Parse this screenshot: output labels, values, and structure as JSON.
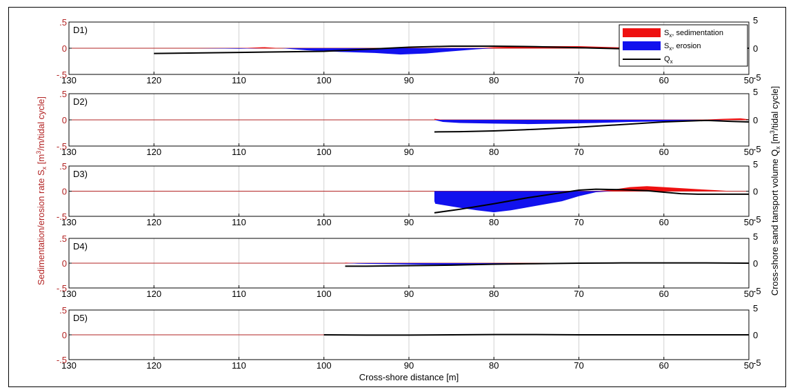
{
  "colors": {
    "sedimentation": "#ee1111",
    "erosion": "#1111ee",
    "qx": "#000000",
    "left_axis": "#b22222",
    "grid": "#d0d0d0"
  },
  "figure": {
    "left_axis_label_main": "Sedimentation/erosion rate S",
    "left_axis_label_sub": "x",
    "left_axis_label_unit_pre": " [m",
    "left_axis_label_unit_sup": "3",
    "left_axis_label_unit_post": "/m/tidal cycle]",
    "right_axis_label_main": "Cross-shore sand tansport volume Q",
    "right_axis_label_sub": "x",
    "right_axis_label_unit_pre": " [m",
    "right_axis_label_unit_sup": "3",
    "right_axis_label_unit_post": "/tidal cycle]",
    "x_axis_label": "Cross-shore distance [m]"
  },
  "legend": {
    "sedimentation_prefix": "S",
    "sedimentation_sub": "x",
    "sedimentation_suffix": ", sedimentation",
    "erosion_prefix": "S",
    "erosion_sub": "x",
    "erosion_suffix": ", erosion",
    "qx_prefix": "Q",
    "qx_sub": "x"
  },
  "chart_data": [
    {
      "type": "area",
      "panel": "D1)",
      "xlim": [
        130,
        50
      ],
      "ylim_left": [
        -0.5,
        0.5
      ],
      "ylim_right": [
        -5,
        5
      ],
      "xticks": [
        130,
        120,
        110,
        100,
        90,
        80,
        70,
        60,
        50
      ],
      "yticks_left": [
        -0.5,
        0,
        0.5
      ],
      "yticks_right": [
        -5,
        0,
        5
      ],
      "grid": "vertical",
      "legend_position": "top-right",
      "sx": {
        "x": [
          120,
          115,
          110,
          107,
          105,
          102,
          98,
          94,
          91,
          88,
          85,
          82,
          80,
          75,
          70,
          66,
          62,
          58,
          54,
          50
        ],
        "y": [
          0,
          0,
          -0.01,
          0.02,
          0,
          -0.04,
          -0.07,
          -0.09,
          -0.12,
          -0.1,
          -0.06,
          -0.02,
          0.02,
          0.04,
          0.04,
          0.02,
          0,
          0,
          0,
          0
        ]
      },
      "qx": {
        "x": [
          120,
          110,
          100,
          95,
          90,
          85,
          80,
          75,
          70,
          65,
          60,
          55,
          50
        ],
        "y": [
          -1.0,
          -0.8,
          -0.6,
          -0.2,
          0.2,
          0.4,
          0.4,
          0.3,
          0.1,
          -0.1,
          0,
          0,
          0
        ]
      }
    },
    {
      "type": "area",
      "panel": "D2)",
      "xlim": [
        130,
        50
      ],
      "ylim_left": [
        -0.5,
        0.5
      ],
      "ylim_right": [
        -5,
        5
      ],
      "xticks": [
        130,
        120,
        110,
        100,
        90,
        80,
        70,
        60,
        50
      ],
      "yticks_left": [
        -0.5,
        0,
        0.5
      ],
      "yticks_right": [
        -5,
        0,
        5
      ],
      "grid": "vertical",
      "sx": {
        "x": [
          87,
          86,
          84,
          80,
          76,
          72,
          68,
          64,
          60,
          56,
          53,
          51,
          50
        ],
        "y": [
          0.02,
          -0.04,
          -0.06,
          -0.07,
          -0.08,
          -0.07,
          -0.06,
          -0.04,
          -0.03,
          -0.02,
          0.02,
          0.03,
          0.01
        ]
      },
      "qx": {
        "x": [
          87,
          84,
          80,
          75,
          70,
          65,
          60,
          55,
          52,
          50
        ],
        "y": [
          -2.3,
          -2.25,
          -2.1,
          -1.8,
          -1.4,
          -0.9,
          -0.4,
          -0.1,
          -0.3,
          -0.4
        ]
      }
    },
    {
      "type": "area",
      "panel": "D3)",
      "xlim": [
        130,
        50
      ],
      "ylim_left": [
        -0.5,
        0.5
      ],
      "ylim_right": [
        -5,
        5
      ],
      "xticks": [
        130,
        120,
        110,
        100,
        90,
        80,
        70,
        60,
        50
      ],
      "yticks_left": [
        -0.5,
        0,
        0.5
      ],
      "yticks_right": [
        -5,
        0,
        5
      ],
      "grid": "vertical",
      "sx": {
        "x": [
          87,
          86.9,
          84,
          82,
          80,
          78,
          76,
          74,
          72,
          70,
          68,
          66,
          64,
          62,
          60,
          58,
          56,
          54,
          52,
          50
        ],
        "y": [
          -0.2,
          -0.25,
          -0.33,
          -0.38,
          -0.42,
          -0.38,
          -0.32,
          -0.26,
          -0.2,
          -0.1,
          -0.02,
          0.03,
          0.08,
          0.1,
          0.08,
          0.06,
          0.04,
          0.02,
          0,
          0
        ]
      },
      "qx": {
        "x": [
          87,
          84,
          80,
          76,
          72,
          70,
          68,
          65,
          62,
          60,
          58,
          56,
          54,
          52,
          50
        ],
        "y": [
          -4.3,
          -3.6,
          -2.5,
          -1.3,
          -0.3,
          0.2,
          0.4,
          0.3,
          0.1,
          -0.2,
          -0.5,
          -0.6,
          -0.6,
          -0.6,
          -0.6
        ]
      }
    },
    {
      "type": "area",
      "panel": "D4)",
      "xlim": [
        130,
        50
      ],
      "ylim_left": [
        -0.5,
        0.5
      ],
      "ylim_right": [
        -5,
        5
      ],
      "xticks": [
        130,
        120,
        110,
        100,
        90,
        80,
        70,
        60,
        50
      ],
      "yticks_left": [
        -0.5,
        0,
        0.5
      ],
      "yticks_right": [
        -5,
        0,
        5
      ],
      "grid": "vertical",
      "sx": {
        "x": [
          97.5,
          96,
          92,
          88,
          84,
          80,
          76,
          72,
          68,
          64,
          60,
          56,
          52,
          50
        ],
        "y": [
          0.01,
          -0.01,
          -0.02,
          -0.03,
          -0.03,
          -0.02,
          -0.01,
          0,
          0.01,
          0.01,
          0.01,
          0.01,
          0,
          0
        ]
      },
      "qx": {
        "x": [
          97.5,
          95,
          90,
          85,
          80,
          75,
          70,
          65,
          60,
          55,
          50
        ],
        "y": [
          -0.6,
          -0.6,
          -0.5,
          -0.4,
          -0.2,
          -0.1,
          0,
          0.05,
          0.05,
          0.05,
          0
        ]
      }
    },
    {
      "type": "area",
      "panel": "D5)",
      "xlim": [
        130,
        50
      ],
      "ylim_left": [
        -0.5,
        0.5
      ],
      "ylim_right": [
        -5,
        5
      ],
      "xticks": [
        130,
        120,
        110,
        100,
        90,
        80,
        70,
        60,
        50
      ],
      "yticks_left": [
        -0.5,
        0,
        0.5
      ],
      "yticks_right": [
        -5,
        0,
        5
      ],
      "grid": "vertical",
      "sx": {
        "x": [
          100,
          96,
          92,
          90,
          88,
          84,
          80,
          76,
          72,
          68,
          64,
          60,
          56,
          52,
          50
        ],
        "y": [
          0,
          0,
          -0.005,
          -0.01,
          0.005,
          -0.005,
          0.01,
          0.005,
          0,
          0,
          0,
          0,
          0,
          0,
          0
        ]
      },
      "qx": {
        "x": [
          100,
          95,
          90,
          85,
          80,
          75,
          70,
          65,
          60,
          55,
          50
        ],
        "y": [
          0,
          -0.05,
          -0.05,
          0,
          0.05,
          0.05,
          0,
          0,
          0,
          0,
          0
        ]
      }
    }
  ]
}
